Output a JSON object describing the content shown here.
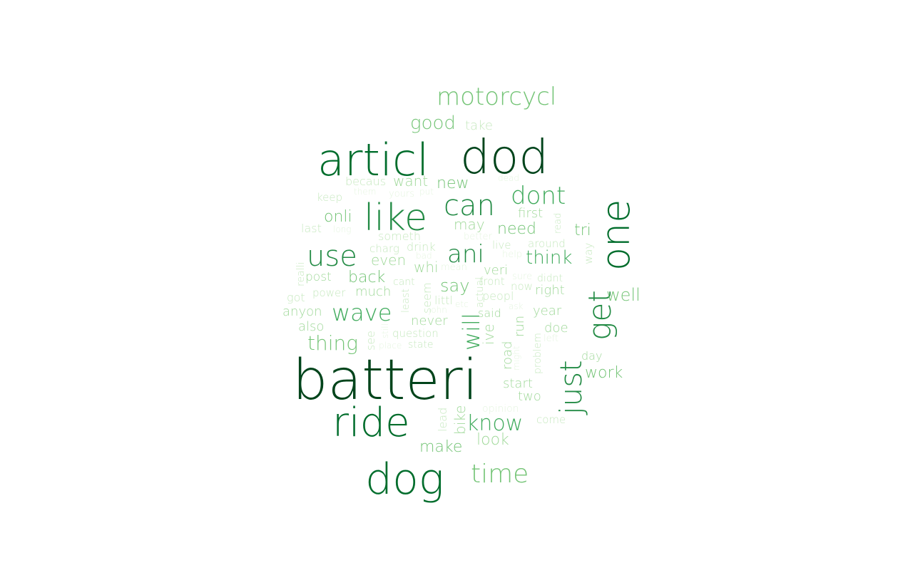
{
  "palette": [
    "#00441b",
    "#006d2c",
    "#238b45",
    "#41ab5d",
    "#74c476",
    "#a1d99b",
    "#c7e9c0",
    "#e5f5e0"
  ],
  "words": [
    {
      "text": "batteri",
      "color": "#00441b"
    },
    {
      "text": "dod",
      "color": "#00441b"
    },
    {
      "text": "articl",
      "color": "#006d2c"
    },
    {
      "text": "dog",
      "color": "#006d2c"
    },
    {
      "text": "ride",
      "color": "#006d2c"
    },
    {
      "text": "one",
      "color": "#006d2c"
    },
    {
      "text": "like",
      "color": "#238b45"
    },
    {
      "text": "get",
      "color": "#238b45"
    },
    {
      "text": "just",
      "color": "#238b45"
    },
    {
      "text": "can",
      "color": "#238b45"
    },
    {
      "text": "use",
      "color": "#238b45"
    },
    {
      "text": "ani",
      "color": "#238b45"
    },
    {
      "text": "dont",
      "color": "#41ab5d"
    },
    {
      "text": "will",
      "color": "#41ab5d"
    },
    {
      "text": "wave",
      "color": "#41ab5d"
    },
    {
      "text": "time",
      "color": "#74c476"
    },
    {
      "text": "motorcycl",
      "color": "#74c476"
    },
    {
      "text": "know",
      "color": "#41ab5d"
    },
    {
      "text": "think",
      "color": "#41ab5d"
    },
    {
      "text": "thing",
      "color": "#74c476"
    },
    {
      "text": "make",
      "color": "#74c476"
    },
    {
      "text": "good",
      "color": "#74c476"
    },
    {
      "text": "well",
      "color": "#74c476"
    },
    {
      "text": "work",
      "color": "#74c476"
    },
    {
      "text": "onli",
      "color": "#74c476"
    },
    {
      "text": "back",
      "color": "#74c476"
    },
    {
      "text": "new",
      "color": "#74c476"
    },
    {
      "text": "need",
      "color": "#74c476"
    },
    {
      "text": "say",
      "color": "#74c476"
    },
    {
      "text": "look",
      "color": "#a1d99b"
    },
    {
      "text": "tri",
      "color": "#74c476"
    },
    {
      "text": "may",
      "color": "#a1d99b"
    },
    {
      "text": "want",
      "color": "#a1d99b"
    },
    {
      "text": "even",
      "color": "#a1d99b"
    },
    {
      "text": "whi",
      "color": "#a1d99b"
    },
    {
      "text": "much",
      "color": "#a1d99b"
    },
    {
      "text": "year",
      "color": "#a1d99b"
    },
    {
      "text": "right",
      "color": "#a1d99b"
    },
    {
      "text": "first",
      "color": "#a1d99b"
    },
    {
      "text": "veri",
      "color": "#a1d99b"
    },
    {
      "text": "never",
      "color": "#a1d99b"
    },
    {
      "text": "said",
      "color": "#a1d99b"
    },
    {
      "text": "doe",
      "color": "#a1d99b"
    },
    {
      "text": "ive",
      "color": "#a1d99b"
    },
    {
      "text": "run",
      "color": "#a1d99b"
    },
    {
      "text": "two",
      "color": "#a1d99b"
    },
    {
      "text": "start",
      "color": "#a1d99b"
    },
    {
      "text": "bike",
      "color": "#a1d99b"
    },
    {
      "text": "day",
      "color": "#a1d99b"
    },
    {
      "text": "road",
      "color": "#a1d99b"
    },
    {
      "text": "anyon",
      "color": "#a1d99b"
    },
    {
      "text": "also",
      "color": "#a1d99b"
    },
    {
      "text": "post",
      "color": "#a1d99b"
    },
    {
      "text": "becaus",
      "color": "#c7e9c0"
    },
    {
      "text": "someth",
      "color": "#c7e9c0"
    },
    {
      "text": "charg",
      "color": "#c7e9c0"
    },
    {
      "text": "drink",
      "color": "#c7e9c0"
    },
    {
      "text": "peopl",
      "color": "#c7e9c0"
    },
    {
      "text": "seem",
      "color": "#c7e9c0"
    },
    {
      "text": "littl",
      "color": "#c7e9c0"
    },
    {
      "text": "question",
      "color": "#c7e9c0"
    },
    {
      "text": "state",
      "color": "#c7e9c0"
    },
    {
      "text": "see",
      "color": "#c7e9c0"
    },
    {
      "text": "got",
      "color": "#c7e9c0"
    },
    {
      "text": "power",
      "color": "#c7e9c0"
    },
    {
      "text": "keep",
      "color": "#c7e9c0"
    },
    {
      "text": "last",
      "color": "#c7e9c0"
    },
    {
      "text": "realli",
      "color": "#c7e9c0"
    },
    {
      "text": "take",
      "color": "#c7e9c0"
    },
    {
      "text": "around",
      "color": "#c7e9c0"
    },
    {
      "text": "live",
      "color": "#c7e9c0"
    },
    {
      "text": "front",
      "color": "#c7e9c0"
    },
    {
      "text": "actual",
      "color": "#c7e9c0"
    },
    {
      "text": "now",
      "color": "#c7e9c0"
    },
    {
      "text": "didnt",
      "color": "#c7e9c0"
    },
    {
      "text": "way",
      "color": "#c7e9c0"
    },
    {
      "text": "read",
      "color": "#c7e9c0"
    },
    {
      "text": "problem",
      "color": "#c7e9c0"
    },
    {
      "text": "lead",
      "color": "#c7e9c0"
    },
    {
      "text": "come",
      "color": "#c7e9c0"
    },
    {
      "text": "opinion",
      "color": "#e5f5e0"
    },
    {
      "text": "least",
      "color": "#c7e9c0"
    },
    {
      "text": "cant",
      "color": "#c7e9c0"
    },
    {
      "text": "better",
      "color": "#e5f5e0"
    },
    {
      "text": "help",
      "color": "#e5f5e0"
    },
    {
      "text": "mean",
      "color": "#e5f5e0"
    },
    {
      "text": "sure",
      "color": "#e5f5e0"
    },
    {
      "text": "ask",
      "color": "#e5f5e0"
    },
    {
      "text": "etc",
      "color": "#e5f5e0"
    },
    {
      "text": "john",
      "color": "#e5f5e0"
    },
    {
      "text": "still",
      "color": "#e5f5e0"
    },
    {
      "text": "place",
      "color": "#e5f5e0"
    },
    {
      "text": "might",
      "color": "#e5f5e0"
    },
    {
      "text": "left",
      "color": "#e5f5e0"
    },
    {
      "text": "long",
      "color": "#e5f5e0"
    },
    {
      "text": "bad",
      "color": "#e5f5e0"
    },
    {
      "text": "dead",
      "color": "#e5f5e0"
    },
    {
      "text": "put",
      "color": "#e5f5e0"
    },
    {
      "text": "yours",
      "color": "#e5f5e0"
    },
    {
      "text": "them",
      "color": "#e5f5e0"
    }
  ]
}
